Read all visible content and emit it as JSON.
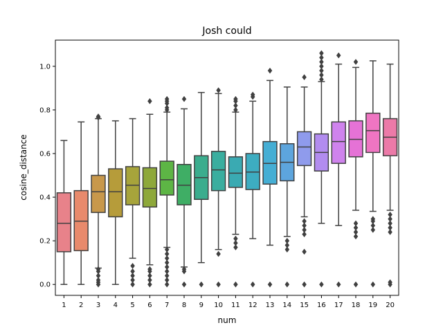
{
  "chart_data": {
    "type": "boxplot",
    "title": "Josh could",
    "xlabel": "num",
    "ylabel": "cosine_distance",
    "ylim": [
      -0.05,
      1.12
    ],
    "yticks": [
      0.0,
      0.2,
      0.4,
      0.6,
      0.8,
      1.0
    ],
    "ytick_labels": [
      "0.0",
      "0.2",
      "0.4",
      "0.6",
      "0.8",
      "1.0"
    ],
    "grid": false,
    "legend": "none",
    "categories": [
      "1",
      "2",
      "3",
      "4",
      "5",
      "6",
      "7",
      "8",
      "9",
      "10",
      "11",
      "12",
      "13",
      "14",
      "15",
      "16",
      "17",
      "18",
      "19",
      "20"
    ],
    "colors": [
      "#e8828a",
      "#e88a6c",
      "#c8984b",
      "#b69c3a",
      "#a7a43b",
      "#8ea83a",
      "#5db545",
      "#3fae65",
      "#3bad8e",
      "#3aae9f",
      "#3aaab2",
      "#3dadc1",
      "#45aed4",
      "#5da5dd",
      "#8f9bec",
      "#b28cef",
      "#cf83ed",
      "#e572d6",
      "#ef75c2",
      "#ec7aa8"
    ],
    "outline_color": "#404040",
    "boxes": [
      {
        "num": "1",
        "whislo": 0.0,
        "q1": 0.15,
        "median": 0.28,
        "q3": 0.42,
        "whishi": 0.66,
        "fliers": []
      },
      {
        "num": "2",
        "whislo": 0.0,
        "q1": 0.155,
        "median": 0.29,
        "q3": 0.43,
        "whishi": 0.745,
        "fliers": []
      },
      {
        "num": "3",
        "whislo": 0.075,
        "q1": 0.33,
        "median": 0.425,
        "q3": 0.5,
        "whishi": 0.76,
        "fliers": [
          0.0,
          0.01,
          0.02,
          0.04,
          0.06,
          0.07,
          0.765,
          0.77
        ]
      },
      {
        "num": "4",
        "whislo": 0.0,
        "q1": 0.31,
        "median": 0.425,
        "q3": 0.53,
        "whishi": 0.75,
        "fliers": []
      },
      {
        "num": "5",
        "whislo": 0.12,
        "q1": 0.365,
        "median": 0.455,
        "q3": 0.54,
        "whishi": 0.76,
        "fliers": [
          0.0,
          0.02,
          0.04,
          0.06,
          0.085
        ]
      },
      {
        "num": "6",
        "whislo": 0.09,
        "q1": 0.355,
        "median": 0.44,
        "q3": 0.535,
        "whishi": 0.78,
        "fliers": [
          0.0,
          0.02,
          0.04,
          0.06,
          0.07,
          0.84
        ]
      },
      {
        "num": "7",
        "whislo": 0.17,
        "q1": 0.41,
        "median": 0.48,
        "q3": 0.565,
        "whishi": 0.79,
        "fliers": [
          0.0,
          0.02,
          0.04,
          0.06,
          0.08,
          0.1,
          0.12,
          0.14,
          0.16,
          0.8,
          0.81,
          0.83,
          0.84,
          0.85
        ]
      },
      {
        "num": "8",
        "whislo": 0.08,
        "q1": 0.365,
        "median": 0.455,
        "q3": 0.55,
        "whishi": 0.805,
        "fliers": [
          0.0,
          0.06,
          0.07,
          0.85
        ]
      },
      {
        "num": "9",
        "whislo": 0.1,
        "q1": 0.39,
        "median": 0.49,
        "q3": 0.59,
        "whishi": 0.88,
        "fliers": [
          0.0
        ]
      },
      {
        "num": "10",
        "whislo": 0.16,
        "q1": 0.43,
        "median": 0.525,
        "q3": 0.61,
        "whishi": 0.875,
        "fliers": [
          0.0,
          0.14,
          0.89
        ]
      },
      {
        "num": "11",
        "whislo": 0.23,
        "q1": 0.445,
        "median": 0.51,
        "q3": 0.585,
        "whishi": 0.79,
        "fliers": [
          0.0,
          0.17,
          0.19,
          0.21,
          0.8,
          0.82,
          0.84,
          0.85
        ]
      },
      {
        "num": "12",
        "whislo": 0.21,
        "q1": 0.435,
        "median": 0.515,
        "q3": 0.6,
        "whishi": 0.84,
        "fliers": [
          0.0,
          0.86,
          0.87
        ]
      },
      {
        "num": "13",
        "whislo": 0.18,
        "q1": 0.46,
        "median": 0.555,
        "q3": 0.655,
        "whishi": 0.935,
        "fliers": [
          0.0,
          0.98
        ]
      },
      {
        "num": "14",
        "whislo": 0.22,
        "q1": 0.475,
        "median": 0.56,
        "q3": 0.645,
        "whishi": 0.905,
        "fliers": [
          0.0,
          0.16,
          0.18,
          0.2
        ]
      },
      {
        "num": "15",
        "whislo": 0.31,
        "q1": 0.545,
        "median": 0.63,
        "q3": 0.7,
        "whishi": 0.905,
        "fliers": [
          0.0,
          0.15,
          0.23,
          0.25,
          0.27,
          0.29,
          0.95
        ]
      },
      {
        "num": "16",
        "whislo": 0.28,
        "q1": 0.52,
        "median": 0.605,
        "q3": 0.69,
        "whishi": 0.93,
        "fliers": [
          0.0,
          0.94,
          0.96,
          0.98,
          1.0,
          1.02,
          1.04,
          1.06
        ]
      },
      {
        "num": "17",
        "whislo": 0.27,
        "q1": 0.555,
        "median": 0.655,
        "q3": 0.745,
        "whishi": 1.01,
        "fliers": [
          0.0,
          1.05
        ]
      },
      {
        "num": "18",
        "whislo": 0.34,
        "q1": 0.585,
        "median": 0.665,
        "q3": 0.75,
        "whishi": 0.995,
        "fliers": [
          0.0,
          0.22,
          0.24,
          0.26,
          0.28,
          1.02
        ]
      },
      {
        "num": "19",
        "whislo": 0.335,
        "q1": 0.605,
        "median": 0.705,
        "q3": 0.785,
        "whishi": 1.025,
        "fliers": [
          0.0,
          0.25,
          0.27,
          0.29,
          0.3
        ]
      },
      {
        "num": "20",
        "whislo": 0.34,
        "q1": 0.59,
        "median": 0.675,
        "q3": 0.76,
        "whishi": 1.01,
        "fliers": [
          0.0,
          0.01,
          0.24,
          0.26,
          0.28,
          0.3,
          0.32
        ]
      }
    ]
  }
}
